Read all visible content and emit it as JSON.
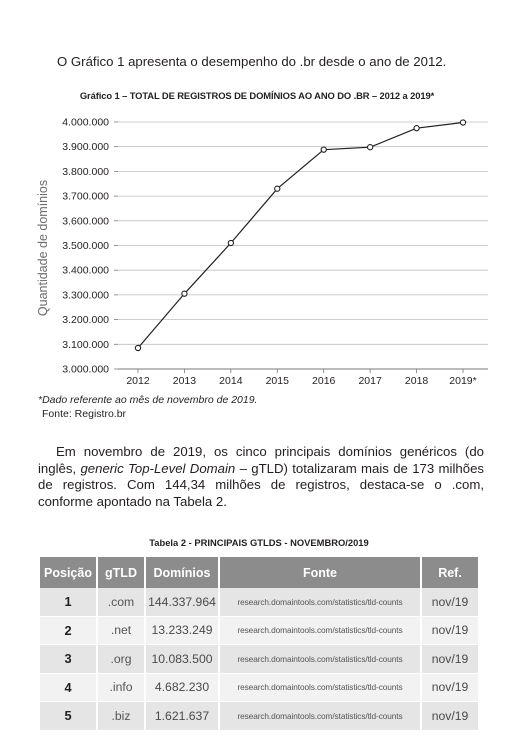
{
  "intro_text": "O Gráfico 1 apresenta o desempenho do .br desde o ano de 2012.",
  "chart_title": "Gráfico 1 – TOTAL DE REGISTROS DE DOMÍNIOS AO ANO DO .BR – 2012 a 2019*",
  "chart_data": {
    "type": "line",
    "title": "Gráfico 1 – TOTAL DE REGISTROS DE DOMÍNIOS AO ANO DO .BR – 2012 a 2019*",
    "xlabel": "",
    "ylabel": "Quantidade de domínios",
    "categories": [
      "2012",
      "2013",
      "2014",
      "2015",
      "2016",
      "2017",
      "2018",
      "2019*"
    ],
    "values": [
      3085000,
      3305000,
      3510000,
      3730000,
      3888000,
      3898000,
      3975000,
      3998000
    ],
    "ylim": [
      3000000,
      4000000
    ],
    "yticks": [
      "3.000.000",
      "3.100.000",
      "3.200.000",
      "3.300.000",
      "3.400.000",
      "3.500.000",
      "3.600.000",
      "3.700.000",
      "3.800.000",
      "3.900.000",
      "4.000.000"
    ],
    "grid": true,
    "line_color": "#231f20",
    "grid_color": "#bfbfbf"
  },
  "note_asterisk": "*Dado referente ao mês de novembro de 2019.",
  "note_source": "Fonte: Registro.br",
  "para2": {
    "p1": "Em novembro de 2019, os cinco principais domínios genéricos (do inglês, ",
    "p2_italic": "generic Top-Level Domain",
    "p3": " – gTLD) totalizaram mais de 173 milhões de registros. Com 144,34 milhões de registros, destaca-se o .com, conforme apontado na Tabela 2."
  },
  "table_title": "Tabela 2 - PRINCIPAIS GTLDS - NOVEMBRO/2019",
  "table": {
    "headers": [
      "Posição",
      "gTLD",
      "Domínios",
      "Fonte",
      "Ref."
    ],
    "rows": [
      [
        "1",
        ".com",
        "144.337.964",
        "research.domaintools.com/statistics/tld-counts",
        "nov/19"
      ],
      [
        "2",
        ".net",
        "13.233.249",
        "research.domaintools.com/statistics/tld-counts",
        "nov/19"
      ],
      [
        "3",
        ".org",
        "10.083.500",
        "research.domaintools.com/statistics/tld-counts",
        "nov/19"
      ],
      [
        "4",
        ".info",
        "4.682.230",
        "research.domaintools.com/statistics/tld-counts",
        "nov/19"
      ],
      [
        "5",
        ".biz",
        "1.621.637",
        "research.domaintools.com/statistics/tld-counts",
        "nov/19"
      ]
    ],
    "header_color": "#8c8c8c"
  }
}
